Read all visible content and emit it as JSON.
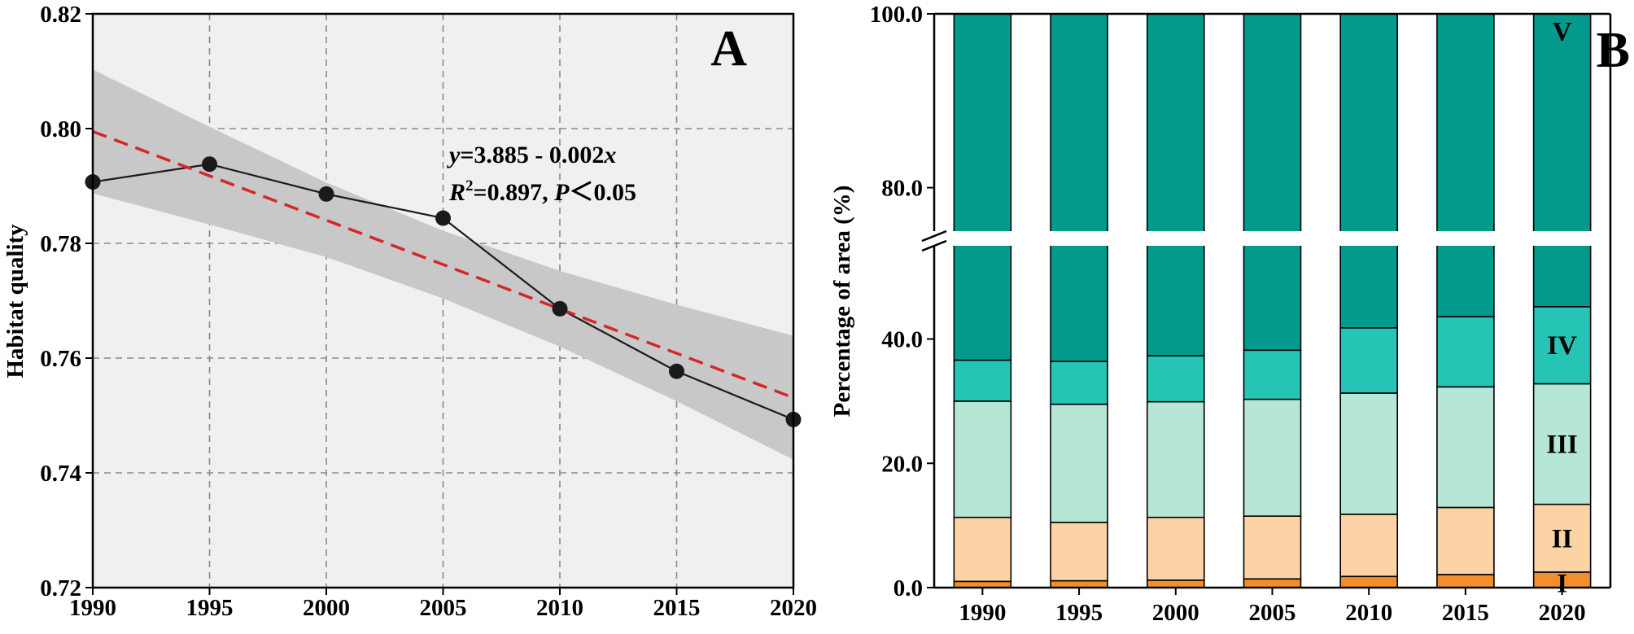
{
  "chart_data": [
    {
      "type": "line",
      "panel_label": "A",
      "title": "",
      "xlabel": "",
      "ylabel": "Habitat quality",
      "x": [
        1990,
        1995,
        2000,
        2005,
        2010,
        2015,
        2020
      ],
      "xlim": [
        1990,
        2020
      ],
      "ylim": [
        0.72,
        0.82
      ],
      "x_tick_labels": [
        "1990",
        "1995",
        "2000",
        "2005",
        "2010",
        "2015",
        "2020"
      ],
      "y_ticks": [
        0.72,
        0.74,
        0.76,
        0.78,
        0.8,
        0.82
      ],
      "y_tick_labels": [
        "0.72",
        "0.74",
        "0.76",
        "0.78",
        "0.80",
        "0.82"
      ],
      "grid": true,
      "series": [
        {
          "name": "Habitat quality",
          "values": [
            0.7907,
            0.7938,
            0.7886,
            0.7844,
            0.7686,
            0.7577,
            0.7493
          ]
        }
      ],
      "fit": {
        "name": "Linear fit",
        "values": [
          0.7995,
          0.7918,
          0.7841,
          0.7763,
          0.7686,
          0.7609,
          0.7531
        ],
        "ci_upper": [
          0.8103,
          0.8003,
          0.7906,
          0.7822,
          0.7752,
          0.7693,
          0.7639
        ],
        "ci_lower": [
          0.7887,
          0.7833,
          0.7776,
          0.7704,
          0.762,
          0.7525,
          0.7423
        ]
      },
      "annotation": {
        "line1": {
          "y": "y",
          "eq": "=3.885 - 0.002",
          "x": "x"
        },
        "line2": {
          "r": "R",
          "sup": "2",
          "r2": "=0.897, ",
          "p": "P",
          "pval": "＜0.05"
        }
      },
      "colors": {
        "line": "#1a1a1a",
        "fit": "#d62728",
        "band": "#c8c8c8",
        "background": "#f0f0f0"
      }
    },
    {
      "type": "bar",
      "stacked": true,
      "panel_label": "B",
      "title": "",
      "xlabel": "",
      "ylabel": "Percentage of area (%)",
      "categories": [
        "1990",
        "1995",
        "2000",
        "2005",
        "2010",
        "2015",
        "2020"
      ],
      "y_axis_break": {
        "lower_range": [
          0,
          55
        ],
        "upper_range": [
          75,
          100
        ]
      },
      "y_tick_labels": [
        "0.0",
        "20.0",
        "40.0",
        "80.0",
        "100.0"
      ],
      "series": [
        {
          "name": "I",
          "color": "#f28e2b",
          "values": [
            1.0,
            1.1,
            1.2,
            1.4,
            1.8,
            2.1,
            2.5
          ]
        },
        {
          "name": "II",
          "color": "#fcd3a5",
          "values": [
            10.3,
            9.4,
            10.1,
            10.1,
            10.0,
            10.8,
            10.9
          ]
        },
        {
          "name": "III",
          "color": "#b6e6d6",
          "values": [
            18.7,
            19.0,
            18.6,
            18.8,
            19.5,
            19.4,
            19.4
          ]
        },
        {
          "name": "IV",
          "color": "#26c4b4",
          "values": [
            6.6,
            6.9,
            7.4,
            7.9,
            10.5,
            11.3,
            12.4
          ]
        },
        {
          "name": "V",
          "color": "#019a8c",
          "values": [
            63.4,
            63.6,
            62.7,
            61.8,
            58.2,
            56.4,
            54.8
          ]
        }
      ]
    }
  ]
}
